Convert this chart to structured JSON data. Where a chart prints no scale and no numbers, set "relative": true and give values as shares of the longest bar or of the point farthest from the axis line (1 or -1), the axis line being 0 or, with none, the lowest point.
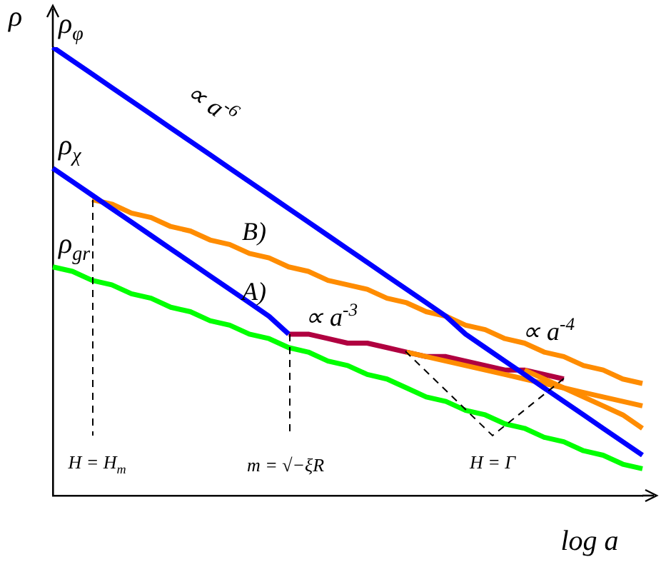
{
  "chart_data": {
    "type": "line",
    "relative": true,
    "marker": "none",
    "xlabel": "log a",
    "ylabel": "ρ",
    "categories": [
      null,
      null,
      null,
      null,
      null,
      null,
      null,
      null,
      null,
      null,
      null,
      null,
      null,
      null,
      null,
      null,
      null,
      null,
      null,
      null,
      null,
      null,
      null,
      null,
      null,
      null,
      null,
      null,
      null,
      null,
      null
    ],
    "series": [
      {
        "name": "ρ$_{φ}$",
        "color": "#0000ff",
        "values": [
          1,
          0.97,
          0.94,
          0.91,
          0.88,
          0.85,
          0.82,
          0.79,
          0.76,
          0.73,
          0.7,
          0.67,
          0.64,
          0.61,
          0.58,
          0.55,
          0.52,
          0.49,
          0.46,
          0.43,
          0.4,
          0.36,
          0.33,
          0.3,
          0.27,
          0.24,
          0.21,
          0.18,
          0.15,
          0.12,
          0.09
        ]
      },
      {
        "name": "ρ$_{χ}$",
        "color": "#0000ff",
        "values": [
          0.73,
          0.7,
          0.67,
          0.64,
          0.61,
          0.58,
          0.55,
          0.52,
          0.49,
          0.46,
          0.43,
          0.4,
          0.36,
          null,
          null,
          null,
          null,
          null,
          null,
          null,
          null,
          null,
          null,
          null,
          null,
          null,
          null,
          null,
          null,
          null,
          null
        ]
      },
      {
        "color": "#ff8c00",
        "values": [
          null,
          null,
          0.66,
          0.65,
          0.63,
          0.62,
          0.6,
          0.59,
          0.57,
          0.56,
          0.54,
          0.53,
          0.51,
          0.5,
          0.48,
          0.47,
          0.46,
          0.44,
          0.43,
          0.41,
          0.4,
          0.38,
          0.37,
          0.35,
          0.34,
          0.32,
          0.31,
          0.29,
          0.28,
          0.26,
          0.25
        ]
      },
      {
        "color": "#ff8c00",
        "values": [
          null,
          null,
          null,
          null,
          null,
          null,
          null,
          null,
          null,
          null,
          null,
          null,
          null,
          null,
          null,
          null,
          null,
          null,
          0.32,
          0.31,
          0.3,
          0.29,
          0.28,
          0.27,
          0.26,
          0.25,
          0.24,
          0.23,
          0.22,
          0.21,
          0.2
        ]
      },
      {
        "color": "#ff8c00",
        "values": [
          null,
          null,
          null,
          null,
          null,
          null,
          null,
          null,
          null,
          null,
          null,
          null,
          null,
          null,
          null,
          null,
          null,
          null,
          null,
          null,
          null,
          null,
          null,
          null,
          0.28,
          0.26,
          0.24,
          0.22,
          0.2,
          0.18,
          0.15
        ]
      },
      {
        "color": "#b00040",
        "values": [
          null,
          null,
          null,
          null,
          null,
          null,
          null,
          null,
          null,
          null,
          null,
          null,
          0.36,
          0.36,
          0.35,
          0.34,
          0.34,
          0.33,
          0.32,
          0.31,
          0.31,
          0.3,
          0.29,
          0.28,
          0.28,
          0.27,
          0.26,
          null,
          null,
          null,
          null
        ]
      },
      {
        "name": "ρ$_{gr}$",
        "color": "#00ff00",
        "values": [
          0.51,
          0.5,
          0.48,
          0.47,
          0.45,
          0.44,
          0.42,
          0.41,
          0.39,
          0.38,
          0.36,
          0.35,
          0.33,
          0.32,
          0.3,
          0.29,
          0.27,
          0.26,
          0.24,
          0.22,
          0.21,
          0.19,
          0.18,
          0.16,
          0.15,
          0.13,
          0.12,
          0.1,
          0.09,
          0.07,
          0.06
        ]
      }
    ],
    "annotations": [
      "∝ a$^{-6}$",
      "B)",
      "A)",
      "∝ a$^{-3}$",
      "∝ a$^{-4}$",
      "H = H$_{m}$",
      "m = √−ξR",
      "H = Γ"
    ]
  }
}
